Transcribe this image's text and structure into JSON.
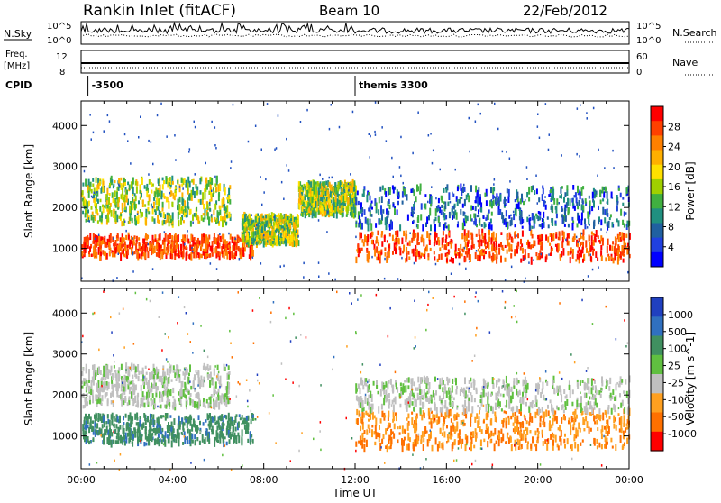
{
  "header": {
    "title": "Rankin Inlet (fitACF)",
    "beam": "Beam 10",
    "date": "22/Feb/2012"
  },
  "top_panels": {
    "nsky_label": "N.Sky",
    "nsearch_label": "N.Search",
    "noise_ticks_left": [
      "10^5",
      "10^0"
    ],
    "noise_ticks_right": [
      "10^5",
      "10^0"
    ],
    "freq_label": "Freq.",
    "freq_unit": "[MHz]",
    "freq_ticks": [
      "12",
      "8"
    ],
    "nave_label": "Nave",
    "nave_ticks": [
      "60",
      "0"
    ],
    "cpid_label": "CPID",
    "cpid_items": [
      {
        "text": "-3500",
        "t": 0.3
      },
      {
        "text": "themis 3300",
        "t": 12.0
      }
    ]
  },
  "chart_data": [
    {
      "type": "heatmap",
      "name": "power",
      "ylabel": "Slant Range [km]",
      "xlabel": "",
      "ylim": [
        200,
        4600
      ],
      "xlim": [
        0,
        24
      ],
      "y_ticks": [
        "1000",
        "2000",
        "3000",
        "4000"
      ],
      "x_ticks": [],
      "colorbar": {
        "label": "Power [dB]",
        "ticks": [
          "28",
          "24",
          "20",
          "16",
          "12",
          "8",
          "4"
        ],
        "colors": [
          "#ff0000",
          "#ff4000",
          "#ff8000",
          "#ffb000",
          "#ffe000",
          "#a0d000",
          "#40b040",
          "#209080",
          "#2060a0",
          "#2040e0",
          "#0000ff"
        ]
      },
      "bands": [
        {
          "t0": 0.0,
          "t1": 7.5,
          "r0": 800,
          "r1": 1300,
          "level": "high"
        },
        {
          "t0": 0.0,
          "t1": 6.5,
          "r0": 1600,
          "r1": 2700,
          "level": "mid"
        },
        {
          "t0": 7.0,
          "t1": 9.5,
          "r0": 1100,
          "r1": 1800,
          "level": "mid"
        },
        {
          "t0": 9.5,
          "t1": 12.0,
          "r0": 1800,
          "r1": 2600,
          "level": "mid"
        },
        {
          "t0": 12.0,
          "t1": 24.0,
          "r0": 700,
          "r1": 1400,
          "level": "high"
        },
        {
          "t0": 12.0,
          "t1": 24.0,
          "r0": 1500,
          "r1": 2500,
          "level": "low"
        }
      ]
    },
    {
      "type": "heatmap",
      "name": "velocity",
      "ylabel": "Slant Range [km]",
      "xlabel": "Time UT",
      "ylim": [
        200,
        4600
      ],
      "xlim": [
        0,
        24
      ],
      "y_ticks": [
        "1000",
        "2000",
        "3000",
        "4000"
      ],
      "x_ticks": [
        "00:00",
        "04:00",
        "08:00",
        "12:00",
        "16:00",
        "20:00",
        "00:00"
      ],
      "colorbar": {
        "label": "Velocity [m s^-1]",
        "ticks": [
          "1000",
          "500",
          "100",
          "25",
          "-25",
          "-100",
          "-500",
          "-1000"
        ],
        "colors": [
          "#2040c0",
          "#3070c0",
          "#409060",
          "#60c040",
          "#c0c0c0",
          "#ffa020",
          "#ff7000",
          "#ff0000"
        ]
      },
      "bands": [
        {
          "t0": 0.0,
          "t1": 7.5,
          "r0": 800,
          "r1": 1500,
          "level": "neg-green"
        },
        {
          "t0": 0.0,
          "t1": 6.5,
          "r0": 1700,
          "r1": 2700,
          "level": "grey"
        },
        {
          "t0": 12.0,
          "t1": 24.0,
          "r0": 700,
          "r1": 1600,
          "level": "orange"
        },
        {
          "t0": 12.0,
          "t1": 24.0,
          "r0": 1600,
          "r1": 2400,
          "level": "grey"
        }
      ]
    }
  ],
  "colors": {
    "frame": "#000000",
    "background": "#ffffff"
  }
}
